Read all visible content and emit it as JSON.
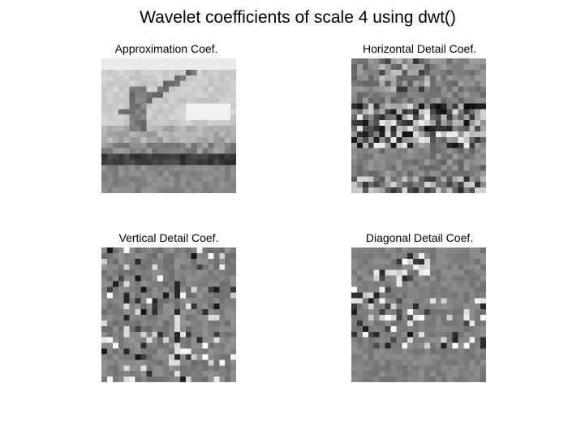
{
  "figure": {
    "title": "Wavelet coefficients of scale 4 using dwt()"
  },
  "panels": [
    {
      "id": "approximation",
      "title": "Approximation Coef."
    },
    {
      "id": "horizontal",
      "title": "Horizontal Detail Coef."
    },
    {
      "id": "vertical",
      "title": "Vertical Detail Coef."
    },
    {
      "id": "diagonal",
      "title": "Diagonal Detail Coef."
    }
  ],
  "colors": {
    "background": "#ffffff",
    "detail_mid_gray": "#808080"
  }
}
